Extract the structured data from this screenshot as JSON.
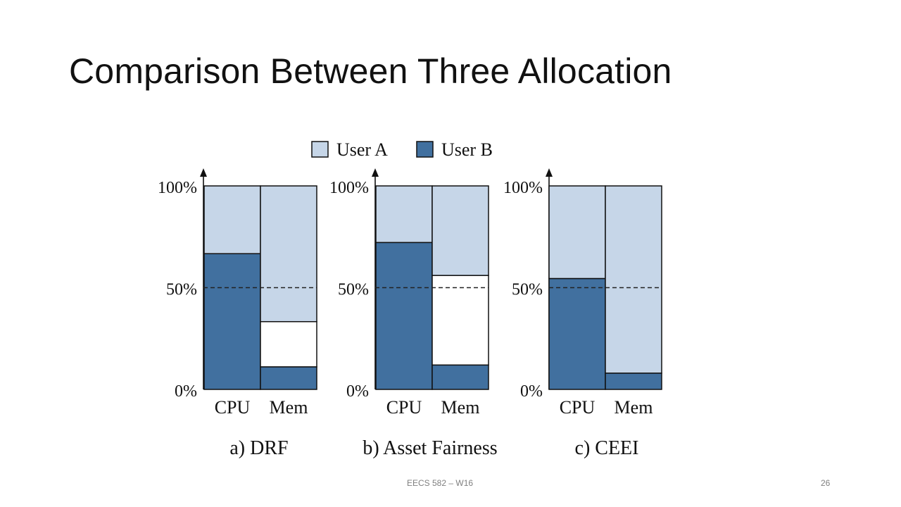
{
  "slide": {
    "title": "Comparison Between Three Allocation",
    "footer_course": "EECS 582 – W16",
    "page_number": "26"
  },
  "chart_data": {
    "type": "bar",
    "stacked": true,
    "legend": {
      "placement": "top",
      "entries": [
        {
          "name": "User A",
          "color": "#c6d6e8"
        },
        {
          "name": "User B",
          "color": "#41709f"
        }
      ]
    },
    "y_ticks": [
      "0%",
      "50%",
      "100%"
    ],
    "ylim": [
      0,
      100
    ],
    "reference_line": {
      "value": 50,
      "style": "dashed"
    },
    "panels": [
      {
        "caption": "a) DRF",
        "categories": [
          "CPU",
          "Mem"
        ],
        "series": [
          {
            "name": "User B",
            "values": [
              66.7,
              11.1
            ]
          },
          {
            "name": "User A",
            "values": [
              33.3,
              66.7
            ]
          }
        ],
        "unallocated": [
          0,
          22.2
        ]
      },
      {
        "caption": "b) Asset Fairness",
        "categories": [
          "CPU",
          "Mem"
        ],
        "series": [
          {
            "name": "User B",
            "values": [
              72.2,
              12.0
            ]
          },
          {
            "name": "User A",
            "values": [
              27.8,
              44.0
            ]
          }
        ],
        "unallocated": [
          0,
          44.0
        ]
      },
      {
        "caption": "c) CEEI",
        "categories": [
          "CPU",
          "Mem"
        ],
        "series": [
          {
            "name": "User B",
            "values": [
              54.5,
              8.0
            ]
          },
          {
            "name": "User A",
            "values": [
              45.5,
              92.0
            ]
          }
        ],
        "unallocated": [
          0,
          0
        ]
      }
    ]
  }
}
